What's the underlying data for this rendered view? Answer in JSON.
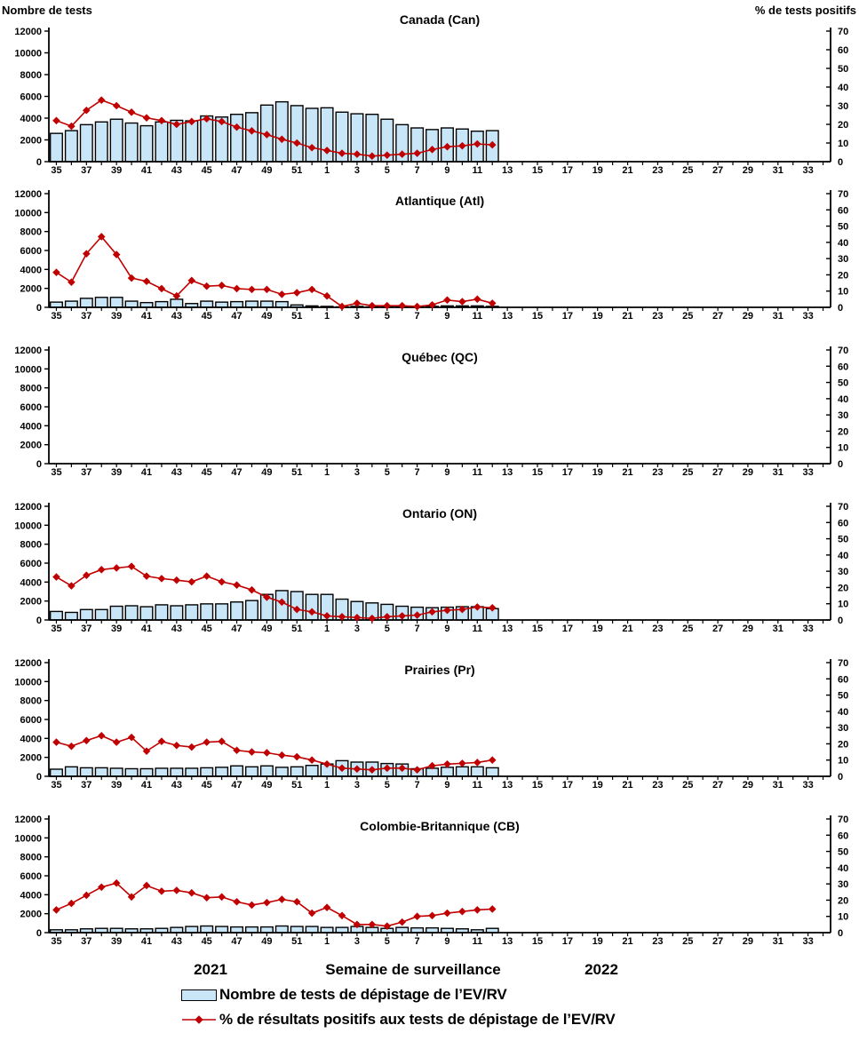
{
  "page": {
    "left_axis_title": "Nombre de tests",
    "right_axis_title": "% de tests positifs",
    "x_axis_title": "Semaine de surveillance",
    "year_left": "2021",
    "year_right": "2022"
  },
  "legend": {
    "bar_label": "Nombre de tests de dépistage de l’EV/RV",
    "line_label": "% de résultats positifs aux tests de dépistage de l’EV/RV"
  },
  "colors": {
    "bar_fill": "#C9E6F8",
    "bar_stroke": "#000000",
    "line": "#C00000",
    "axis": "#000000",
    "text": "#000000",
    "background": "#FFFFFF"
  },
  "chart_data": {
    "type": "bar+line dual-axis, 6 stacked regional panels",
    "x_axis": {
      "title": "Semaine de surveillance",
      "weeks_full": [
        35,
        36,
        37,
        38,
        39,
        40,
        41,
        42,
        43,
        44,
        45,
        46,
        47,
        48,
        49,
        50,
        51,
        52,
        1,
        2,
        3,
        4,
        5,
        6,
        7,
        8,
        9,
        10,
        11,
        12,
        13,
        14,
        15,
        16,
        17,
        18,
        19,
        20,
        21,
        22,
        23,
        24,
        25,
        26,
        27,
        28,
        29,
        30,
        31,
        32,
        33,
        34
      ],
      "tick_labels": [
        35,
        37,
        39,
        41,
        43,
        45,
        47,
        49,
        51,
        1,
        3,
        5,
        7,
        9,
        11,
        13,
        15,
        17,
        19,
        21,
        23,
        25,
        27,
        29,
        31,
        33
      ],
      "year_2021_weeks": "35-52",
      "year_2022_weeks": "1-34"
    },
    "data_weeks": [
      35,
      36,
      37,
      38,
      39,
      40,
      41,
      42,
      43,
      44,
      45,
      46,
      47,
      48,
      49,
      50,
      51,
      52,
      1,
      2,
      3,
      4,
      5,
      6,
      7,
      8,
      9,
      10,
      11,
      12
    ],
    "left_axis": {
      "label": "Nombre de tests",
      "min": 0,
      "max": 12000,
      "step": 2000
    },
    "right_axis": {
      "label": "% de tests positifs",
      "min": 0,
      "max": 70,
      "step": 10
    },
    "grid": false,
    "legend_position": "bottom",
    "panels": [
      {
        "id": "can",
        "title": "Canada (Can)",
        "tests": [
          2600,
          2850,
          3400,
          3650,
          3900,
          3550,
          3300,
          3650,
          3800,
          3750,
          4200,
          4100,
          4350,
          4500,
          5200,
          5500,
          5150,
          4900,
          4950,
          4550,
          4400,
          4350,
          3900,
          3400,
          3100,
          2950,
          3100,
          3000,
          2800,
          2850
        ],
        "pct_positive": [
          22,
          19,
          27.5,
          33,
          30,
          26.5,
          23.5,
          22,
          20,
          21.5,
          23,
          21.5,
          18.5,
          16.5,
          14.5,
          12,
          10,
          7.5,
          6,
          4.5,
          4,
          3,
          3.5,
          4,
          4.5,
          6.5,
          8,
          8.5,
          9.5,
          9
        ]
      },
      {
        "id": "atl",
        "title": "Atlantique (Atl)",
        "tests": [
          550,
          650,
          950,
          1050,
          1050,
          650,
          500,
          600,
          850,
          400,
          650,
          550,
          600,
          650,
          650,
          600,
          250,
          150,
          100,
          50,
          100,
          50,
          50,
          50,
          50,
          100,
          150,
          150,
          150,
          100
        ],
        "pct_positive": [
          21.5,
          15.5,
          33,
          43.5,
          32.5,
          18,
          16,
          11.5,
          7,
          16.5,
          13,
          13.5,
          11.5,
          11,
          11,
          8,
          9,
          11,
          7,
          0.5,
          2.5,
          1,
          1,
          1,
          0.5,
          1.5,
          4.5,
          3.5,
          5,
          2.5
        ]
      },
      {
        "id": "qc",
        "title": "Québec (QC)",
        "tests": [],
        "pct_positive": []
      },
      {
        "id": "on",
        "title": "Ontario (ON)",
        "tests": [
          900,
          800,
          1100,
          1100,
          1450,
          1500,
          1400,
          1600,
          1500,
          1600,
          1700,
          1700,
          1900,
          2050,
          2700,
          3100,
          3000,
          2700,
          2700,
          2200,
          1950,
          1800,
          1650,
          1450,
          1350,
          1300,
          1350,
          1400,
          1400,
          1200
        ],
        "pct_positive": [
          26.5,
          21,
          27.5,
          31,
          32,
          33,
          27,
          25.5,
          24.5,
          23.5,
          27,
          23.5,
          21.5,
          18.5,
          14,
          11,
          6.5,
          5,
          2.5,
          2,
          1.5,
          1,
          2,
          2.5,
          3,
          5,
          6,
          6.5,
          8,
          7.5
        ]
      },
      {
        "id": "pr",
        "title": "Prairies (Pr)",
        "tests": [
          750,
          1000,
          900,
          900,
          850,
          800,
          800,
          850,
          850,
          850,
          900,
          950,
          1100,
          1000,
          1100,
          950,
          1000,
          1150,
          1300,
          1650,
          1500,
          1500,
          1350,
          1300,
          800,
          850,
          950,
          1000,
          1000,
          900
        ],
        "pct_positive": [
          21,
          18.5,
          22,
          25,
          21,
          24,
          15.5,
          21.5,
          19,
          18,
          21,
          21.5,
          16,
          15,
          14.5,
          13,
          12,
          10,
          7.5,
          5,
          4.5,
          4,
          5,
          5,
          4,
          6.5,
          7.5,
          8,
          8.5,
          10
        ]
      },
      {
        "id": "cb",
        "title": "Colombie-Britannique (CB)",
        "tests": [
          300,
          300,
          400,
          450,
          450,
          400,
          400,
          450,
          550,
          650,
          700,
          650,
          600,
          600,
          600,
          700,
          650,
          650,
          550,
          550,
          650,
          550,
          450,
          550,
          500,
          500,
          450,
          400,
          300,
          450
        ],
        "pct_positive": [
          14,
          18,
          23,
          28,
          30.5,
          22,
          29,
          25.5,
          26,
          24.5,
          21.5,
          22,
          19,
          17,
          18.5,
          20.5,
          19,
          12,
          15.5,
          10.5,
          5,
          5,
          4,
          6.5,
          10,
          10.5,
          12,
          13,
          14,
          14.5
        ]
      }
    ]
  }
}
